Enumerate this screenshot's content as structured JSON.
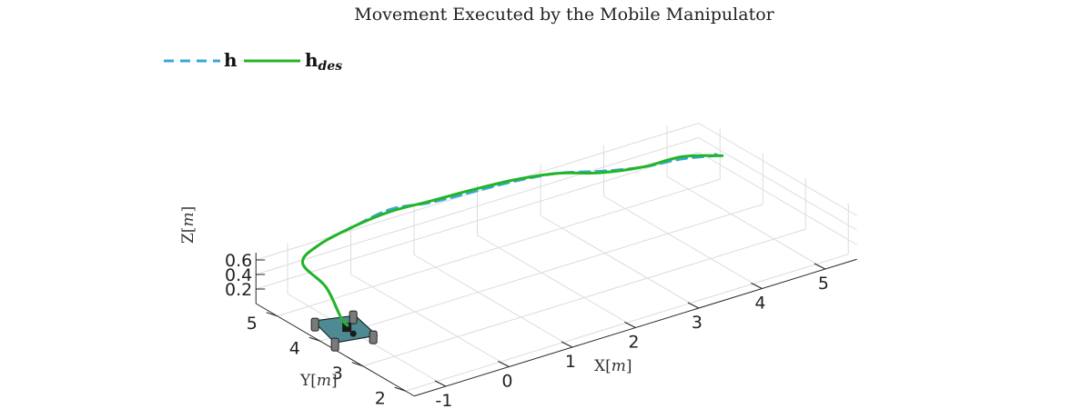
{
  "chart_data": {
    "type": "line",
    "title": "Movement Executed by the Mobile Manipulator",
    "xlabel": "X",
    "xlabel_unit": "m",
    "ylabel": "Y",
    "ylabel_unit": "m",
    "zlabel": "Z",
    "zlabel_unit": "m",
    "xlim": [
      -1.5,
      5.5
    ],
    "ylim": [
      1.8,
      5.5
    ],
    "zlim": [
      0.0,
      0.7
    ],
    "x_ticks": [
      "-1",
      "0",
      "1",
      "2",
      "3",
      "4",
      "5"
    ],
    "y_ticks": [
      "2",
      "3",
      "4",
      "5"
    ],
    "z_ticks": [
      "0.2",
      "0.4",
      "0.6"
    ],
    "grid": true,
    "legend_position": "top-left",
    "legend": [
      {
        "symbol": "h",
        "subscript": "",
        "style": "dashed",
        "color": "#3aa6d6"
      },
      {
        "symbol": "h",
        "subscript": "des",
        "style": "solid",
        "color": "#22b526"
      }
    ],
    "series": [
      {
        "name": "h",
        "color": "#3aa6d6",
        "style": "dashed",
        "points": [
          [
            -1.0,
            4.1,
            0.05
          ],
          [
            -1.0,
            4.25,
            0.1
          ],
          [
            -1.0,
            4.6,
            0.4
          ],
          [
            -1.1,
            5.0,
            0.62
          ],
          [
            -0.6,
            5.35,
            0.62
          ],
          [
            0.0,
            5.4,
            0.7
          ],
          [
            0.6,
            5.45,
            0.75
          ],
          [
            1.2,
            5.4,
            0.7
          ],
          [
            1.8,
            5.3,
            0.72
          ],
          [
            2.4,
            5.2,
            0.74
          ],
          [
            3.0,
            5.1,
            0.72
          ],
          [
            3.6,
            5.0,
            0.62
          ],
          [
            4.2,
            4.9,
            0.55
          ],
          [
            4.8,
            4.85,
            0.52
          ],
          [
            5.3,
            4.8,
            0.45
          ],
          [
            5.2,
            4.8,
            0.5
          ]
        ]
      },
      {
        "name": "h_des",
        "color": "#22b526",
        "style": "solid",
        "points": [
          [
            -1.0,
            4.1,
            0.05
          ],
          [
            -1.0,
            4.25,
            0.1
          ],
          [
            -1.0,
            4.6,
            0.4
          ],
          [
            -1.1,
            5.0,
            0.62
          ],
          [
            -0.6,
            5.35,
            0.62
          ],
          [
            0.0,
            5.4,
            0.7
          ],
          [
            0.6,
            5.45,
            0.72
          ],
          [
            1.2,
            5.4,
            0.72
          ],
          [
            1.8,
            5.3,
            0.75
          ],
          [
            2.4,
            5.2,
            0.76
          ],
          [
            3.0,
            5.1,
            0.72
          ],
          [
            3.6,
            5.0,
            0.6
          ],
          [
            4.2,
            4.9,
            0.55
          ],
          [
            4.8,
            4.85,
            0.55
          ],
          [
            5.4,
            4.8,
            0.42
          ]
        ]
      }
    ],
    "robot": {
      "x": -1.0,
      "y": 4.05,
      "color": "#4e8a92"
    }
  }
}
